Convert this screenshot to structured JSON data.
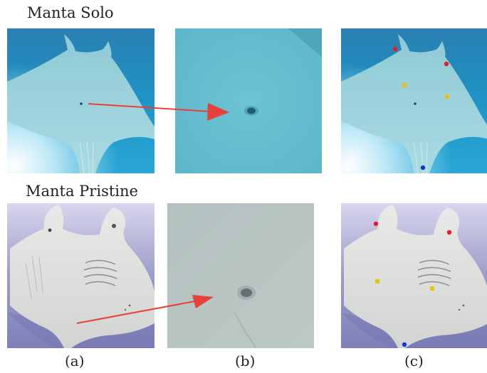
{
  "figure": {
    "rows": [
      {
        "title": "Manta Solo"
      },
      {
        "title": "Manta Pristine"
      }
    ],
    "captions": [
      "(a)",
      "(b)",
      "(c)"
    ]
  },
  "colors": {
    "arrow": "#e8403a",
    "keypoint_top": "#e11d2a",
    "keypoint_mid": "#e6c21a",
    "keypoint_tail": "#1536c9",
    "solo_water": "#1e8fc0",
    "pristine_water": "#8f8fc2"
  }
}
